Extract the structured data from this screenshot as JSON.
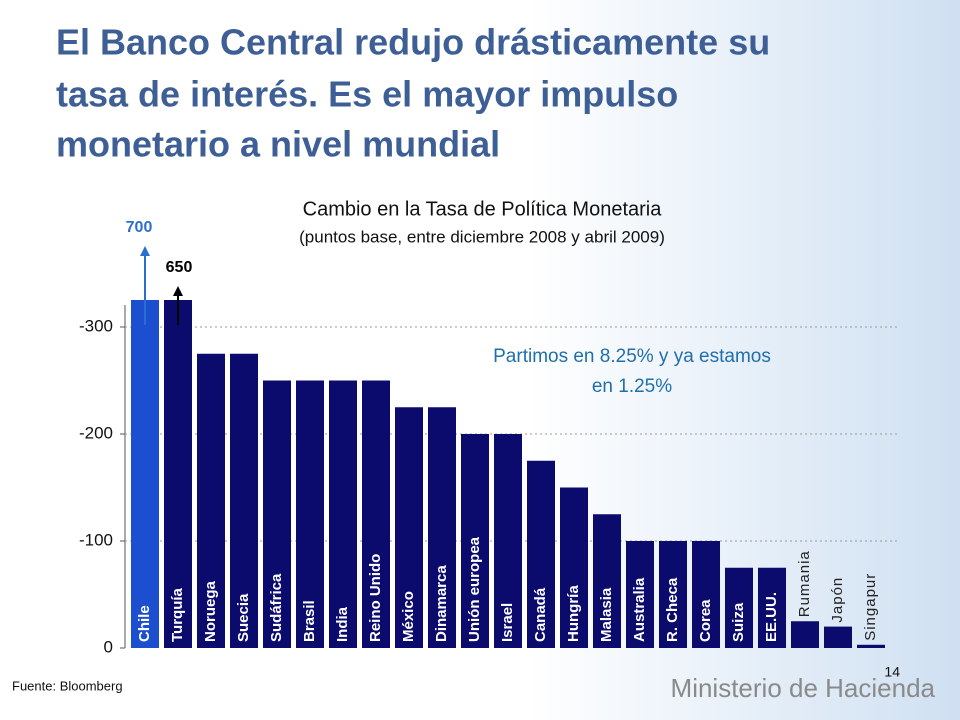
{
  "chart_data": {
    "type": "bar",
    "title_lines": [
      "El Banco Central redujo drásticamente su",
      "tasa de interés. Es el mayor impulso",
      "monetario a nivel mundial"
    ],
    "chart_title": "Cambio en la Tasa de Política Monetaria",
    "subtitle": "(puntos base, entre diciembre 2008 y abril 2009)",
    "annotation_lines": [
      "Partimos en 8.25% y ya estamos",
      "en 1.25%"
    ],
    "categories": [
      "Chile",
      "Turquía",
      "Noruega",
      "Suecia",
      "Sudáfrica",
      "Brasil",
      "India",
      "Reino Unido",
      "México",
      "Dinamarca",
      "Unión europea",
      "Israel",
      "Canadá",
      "Hungría",
      "Malasia",
      "Australia",
      "R. Checa",
      "Corea",
      "Suiza",
      "EE.UU.",
      "Rumania",
      "Japón",
      "Singapur"
    ],
    "values": [
      -700,
      -650,
      -275,
      -275,
      -250,
      -250,
      -250,
      -250,
      -225,
      -225,
      -200,
      -200,
      -175,
      -150,
      -125,
      -100,
      -100,
      -100,
      -75,
      -75,
      -25,
      -20,
      -3
    ],
    "value_labels": [
      "700",
      "650",
      null,
      null,
      null,
      null,
      null,
      null,
      null,
      null,
      null,
      null,
      null,
      null,
      null,
      null,
      null,
      null,
      null,
      null,
      null,
      null,
      null
    ],
    "colors": [
      "#1c4fd0",
      "#0b0b6e",
      "#0b0b6e",
      "#0b0b6e",
      "#0b0b6e",
      "#0b0b6e",
      "#0b0b6e",
      "#0b0b6e",
      "#0b0b6e",
      "#0b0b6e",
      "#0b0b6e",
      "#0b0b6e",
      "#0b0b6e",
      "#0b0b6e",
      "#0b0b6e",
      "#0b0b6e",
      "#0b0b6e",
      "#0b0b6e",
      "#0b0b6e",
      "#0b0b6e",
      "#0b0b6e",
      "#0b0b6e",
      "#0b0b6e"
    ],
    "ylim": [
      0,
      -320
    ],
    "yticks": [
      0,
      -100,
      -200,
      -300
    ],
    "grid": true,
    "source": "Fuente: Bloomberg",
    "page_number": "14",
    "footer_brand": "Ministerio de Hacienda"
  }
}
